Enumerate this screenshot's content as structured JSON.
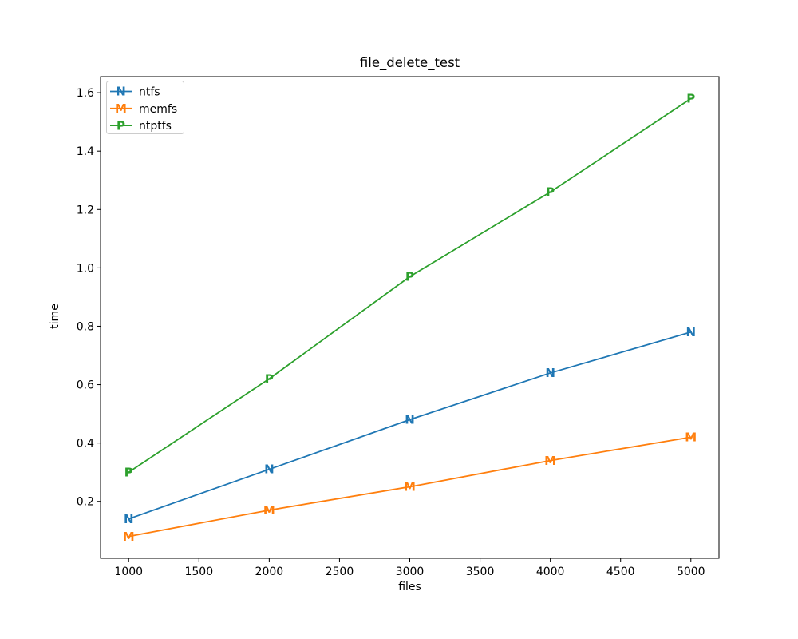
{
  "figure": {
    "background": "#ffffff",
    "text_color": "#000000",
    "spine_color": "#000000",
    "legend_border_color": "#cccccc"
  },
  "chart_data": {
    "type": "line",
    "title": "file_delete_test",
    "xlabel": "files",
    "ylabel": "time",
    "x": [
      1000,
      2000,
      3000,
      4000,
      5000
    ],
    "series": [
      {
        "name": "ntfs",
        "marker": "N",
        "color": "#1f77b4",
        "values": [
          0.14,
          0.31,
          0.48,
          0.64,
          0.78
        ]
      },
      {
        "name": "memfs",
        "marker": "M",
        "color": "#ff7f0e",
        "values": [
          0.08,
          0.17,
          0.25,
          0.34,
          0.42
        ]
      },
      {
        "name": "ntptfs",
        "marker": "P",
        "color": "#2ca02c",
        "values": [
          0.3,
          0.62,
          0.97,
          1.26,
          1.58
        ]
      }
    ],
    "xlim": [
      800,
      5200
    ],
    "ylim": [
      0.005,
      1.655
    ],
    "xticks": [
      1000,
      1500,
      2000,
      2500,
      3000,
      3500,
      4000,
      4500,
      5000
    ],
    "yticks": [
      0.2,
      0.4,
      0.6,
      0.8,
      1.0,
      1.2,
      1.4,
      1.6
    ],
    "legend_position": "upper left",
    "grid": false
  }
}
